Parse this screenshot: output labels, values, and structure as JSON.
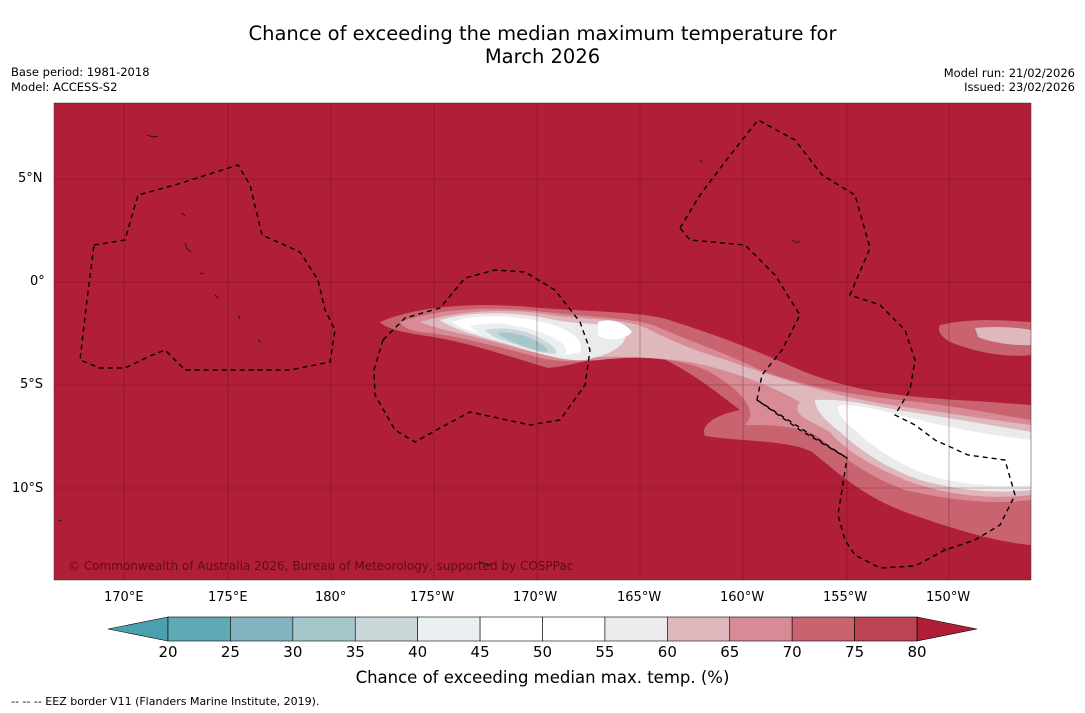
{
  "header": {
    "title_line1": "Chance of exceeding the median maximum temperature for",
    "title_line2": "March 2026",
    "base_period": "Base period: 1981-2018",
    "model": "Model: ACCESS-S2",
    "model_run": "Model run: 21/02/2026",
    "issued": "Issued: 23/02/2026"
  },
  "map": {
    "copyright": "© Commonwealth of Australia 2026, Bureau of Meteorology, supported by COSPPac",
    "lat_labels": [
      "5°N",
      "0°",
      "5°S",
      "10°S"
    ],
    "lon_labels": [
      "170°E",
      "175°E",
      "180°",
      "175°W",
      "170°W",
      "165°W",
      "160°W",
      "155°W",
      "150°W"
    ]
  },
  "colorbar": {
    "ticks": [
      "20",
      "25",
      "30",
      "35",
      "40",
      "45",
      "50",
      "55",
      "60",
      "65",
      "70",
      "75",
      "80"
    ],
    "colors": [
      "#62a9b6",
      "#81b4c0",
      "#a6c6cc",
      "#cad7d8",
      "#eaeff1",
      "#ffffff",
      "#ffffff",
      "#ecebeb",
      "#dfb8be",
      "#d88b95",
      "#c9636f",
      "#bc4352"
    ],
    "under_color": "#4ba0ad",
    "over_color": "#b01e38",
    "label": "Chance of exceeding median max. temp. (%)"
  },
  "footer": {
    "legend": "--  --  -- EEZ border V11 (Flanders Marine Institute, 2019)."
  },
  "colors": {
    "background": "#b01e38",
    "grid": "#5a0e1a",
    "eez": "#000000"
  }
}
